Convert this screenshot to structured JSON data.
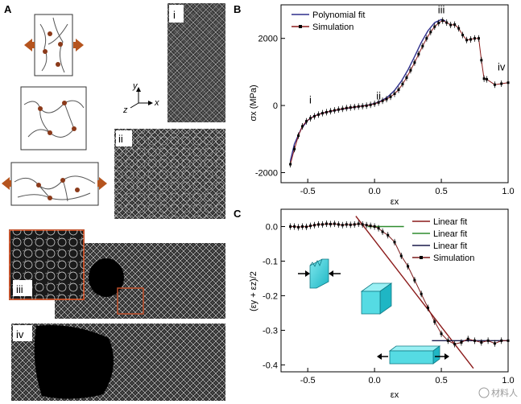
{
  "panel_labels": {
    "a": "A",
    "b": "B",
    "c": "C"
  },
  "panel_a": {
    "stage_labels": [
      "i",
      "ii",
      "iii",
      "iv"
    ],
    "axes_triad": {
      "y": "y",
      "z": "z",
      "x": "x"
    },
    "arrow_color": "#b5541e",
    "node_color": "#8b3a1a",
    "inset_frame_color": "#c0502a"
  },
  "watermark": "材料人",
  "chart_data": [
    {
      "type": "line",
      "panel": "B",
      "xlabel": "εx",
      "ylabel": "σx (MPa)",
      "xlim": [
        -0.7,
        1.0
      ],
      "ylim": [
        -2300,
        3000
      ],
      "xticks": [
        "-0.5",
        "0.0",
        "0.5",
        "1.0"
      ],
      "yticks": [
        "-2000",
        "0",
        "2000"
      ],
      "legend_position": "top-left",
      "annotations": [
        {
          "text": "i",
          "x": -0.48,
          "y": 60
        },
        {
          "text": "ii",
          "x": 0.03,
          "y": 180
        },
        {
          "text": "iii",
          "x": 0.5,
          "y": 2750
        },
        {
          "text": "iv",
          "x": 0.95,
          "y": 1050
        }
      ],
      "series": [
        {
          "name": "Polynomial fit",
          "color": "#2e2e8c",
          "style": "line",
          "x": [
            -0.63,
            -0.6,
            -0.55,
            -0.5,
            -0.45,
            -0.4,
            -0.35,
            -0.3,
            -0.25,
            -0.2,
            -0.15,
            -0.1,
            -0.05,
            0.0,
            0.05,
            0.1,
            0.15,
            0.2,
            0.25,
            0.3,
            0.35,
            0.4,
            0.45,
            0.5,
            0.53
          ],
          "y": [
            -1650,
            -1150,
            -700,
            -440,
            -310,
            -240,
            -190,
            -150,
            -110,
            -80,
            -50,
            -20,
            10,
            60,
            140,
            260,
            450,
            720,
            1060,
            1460,
            1880,
            2230,
            2470,
            2560,
            2520
          ]
        },
        {
          "name": "Simulation",
          "color": "#8b1a1a",
          "style": "line-markers",
          "x": [
            -0.63,
            -0.6,
            -0.57,
            -0.54,
            -0.51,
            -0.48,
            -0.45,
            -0.42,
            -0.39,
            -0.36,
            -0.33,
            -0.3,
            -0.27,
            -0.24,
            -0.21,
            -0.18,
            -0.15,
            -0.12,
            -0.09,
            -0.06,
            -0.03,
            0.0,
            0.03,
            0.06,
            0.09,
            0.12,
            0.15,
            0.18,
            0.21,
            0.24,
            0.27,
            0.3,
            0.33,
            0.36,
            0.39,
            0.42,
            0.45,
            0.48,
            0.51,
            0.54,
            0.57,
            0.6,
            0.63,
            0.66,
            0.69,
            0.72,
            0.75,
            0.78,
            0.8,
            0.82,
            0.84,
            0.9,
            0.95,
            1.0
          ],
          "y": [
            -1750,
            -1300,
            -900,
            -620,
            -470,
            -380,
            -320,
            -270,
            -230,
            -200,
            -170,
            -145,
            -120,
            -100,
            -75,
            -60,
            -45,
            -30,
            -20,
            -5,
            20,
            50,
            90,
            140,
            190,
            260,
            350,
            470,
            640,
            830,
            1050,
            1280,
            1530,
            1770,
            2000,
            2190,
            2350,
            2460,
            2530,
            2470,
            2400,
            2410,
            2300,
            2100,
            1950,
            1970,
            2000,
            2000,
            1350,
            800,
            780,
            620,
            650,
            680
          ]
        }
      ]
    },
    {
      "type": "line",
      "panel": "C",
      "xlabel": "εx",
      "ylabel": "(εy + εz)/2",
      "xlim": [
        -0.7,
        1.0
      ],
      "ylim": [
        -0.42,
        0.05
      ],
      "xticks": [
        "-0.5",
        "0.0",
        "0.5",
        "1.0"
      ],
      "yticks": [
        "0.0",
        "-0.1",
        "-0.2",
        "-0.3",
        "-0.4"
      ],
      "legend_position": "top-right",
      "series": [
        {
          "name": "Linear fit",
          "color": "#8b1a1a",
          "style": "line",
          "x": [
            -0.14,
            0.74
          ],
          "y": [
            0.03,
            -0.41
          ]
        },
        {
          "name": "Linear fit",
          "color": "#2e8b2e",
          "style": "line",
          "x": [
            -0.05,
            0.22
          ],
          "y": [
            0.0,
            0.0
          ]
        },
        {
          "name": "Linear fit",
          "color": "#1a1a4a",
          "style": "line",
          "x": [
            0.43,
            1.0
          ],
          "y": [
            -0.33,
            -0.33
          ]
        },
        {
          "name": "Simulation",
          "color": "#7a1a1a",
          "style": "line-markers",
          "x": [
            -0.63,
            -0.6,
            -0.57,
            -0.54,
            -0.51,
            -0.48,
            -0.45,
            -0.42,
            -0.39,
            -0.36,
            -0.33,
            -0.3,
            -0.27,
            -0.24,
            -0.21,
            -0.18,
            -0.15,
            -0.12,
            -0.09,
            -0.06,
            -0.03,
            0.0,
            0.03,
            0.06,
            0.1,
            0.15,
            0.2,
            0.25,
            0.3,
            0.35,
            0.4,
            0.45,
            0.5,
            0.55,
            0.6,
            0.65,
            0.7,
            0.75,
            0.8,
            0.85,
            0.9,
            0.95,
            1.0
          ],
          "y": [
            0.0,
            0.0,
            -0.002,
            0.0,
            -0.001,
            0.002,
            0.004,
            0.006,
            0.006,
            0.008,
            0.007,
            0.008,
            0.006,
            0.004,
            0.006,
            0.005,
            0.006,
            0.008,
            0.006,
            0.004,
            0.002,
            0.0,
            -0.005,
            -0.015,
            -0.025,
            -0.045,
            -0.085,
            -0.115,
            -0.155,
            -0.195,
            -0.235,
            -0.275,
            -0.31,
            -0.33,
            -0.34,
            -0.335,
            -0.325,
            -0.33,
            -0.335,
            -0.33,
            -0.338,
            -0.33,
            -0.33
          ]
        }
      ]
    }
  ]
}
